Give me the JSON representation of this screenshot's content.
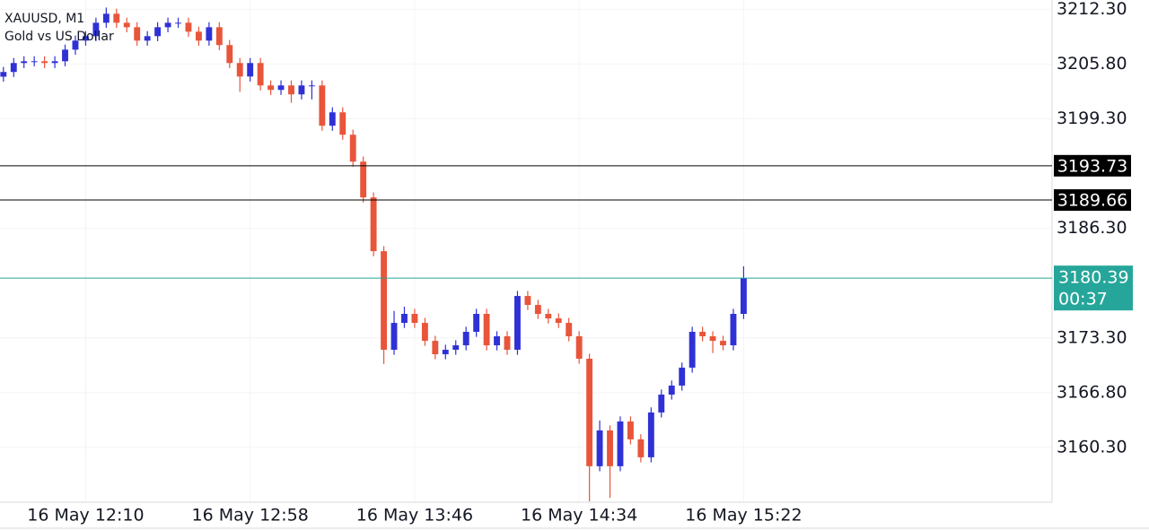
{
  "chart_data": {
    "type": "candlestick",
    "title": "XAUUSD, M1",
    "subtitle": "Gold vs US Dollar",
    "up_color": "#2f31d6",
    "down_color": "#e8553a",
    "x": [
      706,
      709,
      712,
      715,
      718,
      721,
      724,
      727,
      730,
      733,
      736,
      739,
      742,
      745,
      748,
      751,
      754,
      757,
      760,
      763,
      766,
      769,
      772,
      775,
      778,
      781,
      784,
      787,
      790,
      793,
      796,
      799,
      802,
      805,
      808,
      811,
      814,
      817,
      820,
      823,
      826,
      829,
      832,
      835,
      838,
      841,
      844,
      847,
      850,
      853,
      856,
      859,
      862,
      865,
      868,
      871,
      874,
      877,
      880,
      883,
      886,
      889,
      892,
      895,
      898,
      901,
      904,
      907,
      910,
      913,
      916,
      919,
      922
    ],
    "open": [
      3204.3,
      3204.86,
      3205.92,
      3206.13,
      3206.13,
      3205.92,
      3206.13,
      3207.51,
      3208.58,
      3209.11,
      3210.7,
      3211.77,
      3210.7,
      3210.17,
      3208.58,
      3209.11,
      3210.17,
      3210.7,
      3210.7,
      3209.64,
      3208.58,
      3210.17,
      3208.05,
      3205.92,
      3204.32,
      3205.92,
      3203.26,
      3202.73,
      3203.26,
      3202.2,
      3203.26,
      3203.26,
      3198.48,
      3200.07,
      3197.41,
      3194.22,
      3189.97,
      3183.59,
      3171.89,
      3175.08,
      3176.15,
      3175.08,
      3172.95,
      3171.36,
      3171.89,
      3172.42,
      3174.02,
      3176.15,
      3172.42,
      3173.49,
      3171.89,
      3178.27,
      3177.21,
      3176.15,
      3175.61,
      3175.08,
      3173.49,
      3170.83,
      3158.07,
      3162.32,
      3158.07,
      3163.38,
      3161.26,
      3159.13,
      3164.45,
      3166.57,
      3167.64,
      3169.77,
      3174.02,
      3173.49,
      3172.95,
      3172.42,
      3176.15
    ],
    "high": [
      3205.46,
      3206.52,
      3206.73,
      3206.73,
      3206.73,
      3206.73,
      3208.11,
      3209.18,
      3209.71,
      3211.3,
      3212.5,
      3212.37,
      3211.3,
      3210.77,
      3209.71,
      3210.77,
      3211.3,
      3211.3,
      3211.3,
      3210.24,
      3210.77,
      3210.77,
      3208.65,
      3206.52,
      3206.52,
      3206.52,
      3203.86,
      3203.86,
      3203.86,
      3203.86,
      3203.86,
      3203.86,
      3200.67,
      3200.67,
      3198.01,
      3194.82,
      3190.57,
      3184.19,
      3176.5,
      3177.0,
      3176.75,
      3175.68,
      3173.55,
      3172.49,
      3173.02,
      3174.62,
      3176.75,
      3176.75,
      3174.09,
      3174.09,
      3178.87,
      3178.87,
      3177.81,
      3176.75,
      3176.21,
      3175.68,
      3174.09,
      3171.43,
      3163.5,
      3162.92,
      3163.98,
      3163.98,
      3161.86,
      3165.05,
      3167.17,
      3168.24,
      3170.37,
      3174.62,
      3174.62,
      3174.09,
      3173.55,
      3176.75,
      3181.8
    ],
    "low": [
      3203.7,
      3204.26,
      3205.32,
      3205.53,
      3205.32,
      3205.32,
      3205.53,
      3206.91,
      3207.98,
      3208.51,
      3210.1,
      3210.1,
      3209.57,
      3207.98,
      3207.98,
      3208.51,
      3209.57,
      3210.1,
      3209.04,
      3207.98,
      3207.98,
      3207.45,
      3205.32,
      3202.5,
      3203.72,
      3202.66,
      3202.13,
      3202.13,
      3201.2,
      3201.6,
      3201.6,
      3197.88,
      3197.88,
      3196.81,
      3193.62,
      3189.37,
      3182.99,
      3170.2,
      3171.29,
      3174.48,
      3174.48,
      3172.35,
      3170.76,
      3170.76,
      3171.29,
      3171.82,
      3173.42,
      3171.82,
      3171.82,
      3171.29,
      3171.29,
      3176.61,
      3175.55,
      3175.01,
      3174.48,
      3172.89,
      3170.23,
      3153.9,
      3157.47,
      3154.3,
      3157.47,
      3160.66,
      3158.53,
      3158.53,
      3163.85,
      3165.97,
      3167.04,
      3169.17,
      3172.89,
      3171.5,
      3171.82,
      3171.82,
      3175.55
    ],
    "close": [
      3204.86,
      3205.92,
      3206.13,
      3206.13,
      3205.92,
      3206.13,
      3207.51,
      3208.58,
      3209.11,
      3210.7,
      3211.77,
      3210.7,
      3210.17,
      3208.58,
      3209.11,
      3210.17,
      3210.7,
      3210.7,
      3209.64,
      3208.58,
      3210.17,
      3208.05,
      3205.92,
      3204.32,
      3205.92,
      3203.26,
      3202.73,
      3203.26,
      3202.2,
      3203.26,
      3203.26,
      3198.48,
      3200.07,
      3197.41,
      3194.22,
      3189.97,
      3183.59,
      3171.89,
      3175.08,
      3176.15,
      3175.08,
      3172.95,
      3171.36,
      3171.89,
      3172.42,
      3174.02,
      3176.15,
      3172.42,
      3173.49,
      3171.89,
      3178.27,
      3177.21,
      3176.15,
      3175.61,
      3175.08,
      3173.49,
      3170.83,
      3158.07,
      3162.32,
      3158.07,
      3163.38,
      3161.26,
      3159.13,
      3164.45,
      3166.57,
      3167.64,
      3169.77,
      3174.02,
      3173.49,
      3172.95,
      3172.42,
      3176.15,
      3180.4
    ],
    "xlim": [
      705,
      1012
    ],
    "ylim": [
      3153.8,
      3213.4
    ],
    "xticks": [
      {
        "value": 730,
        "label": "16 May 12:10"
      },
      {
        "value": 778,
        "label": "16 May 12:58"
      },
      {
        "value": 826,
        "label": "16 May 13:46"
      },
      {
        "value": 874,
        "label": "16 May 14:34"
      },
      {
        "value": 922,
        "label": "16 May 15:22"
      }
    ],
    "yticks": [
      {
        "value": 3212.3,
        "label": "3212.30"
      },
      {
        "value": 3205.8,
        "label": "3205.80"
      },
      {
        "value": 3199.3,
        "label": "3199.30"
      },
      {
        "value": 3186.3,
        "label": "3186.30"
      },
      {
        "value": 3173.3,
        "label": "3173.30"
      },
      {
        "value": 3166.8,
        "label": "3166.80"
      },
      {
        "value": 3160.3,
        "label": "3160.30"
      }
    ],
    "grid": true,
    "price_lines": [
      {
        "value": 3193.73,
        "label": "3193.73",
        "color": "#000000"
      },
      {
        "value": 3189.66,
        "label": "3189.66",
        "color": "#000000"
      }
    ],
    "current_price": {
      "value": 3180.39,
      "label": "3180.39",
      "countdown": "00:37",
      "color": "#26a69a"
    }
  }
}
